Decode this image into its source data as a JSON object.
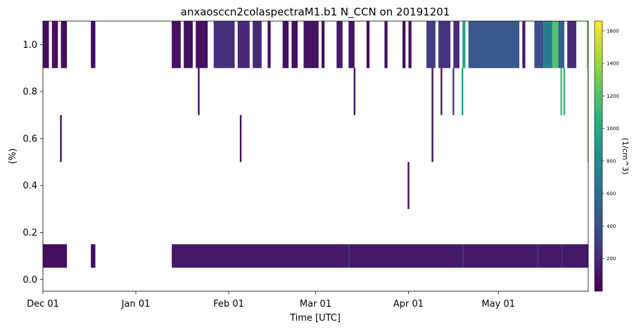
{
  "chart_data": {
    "type": "heatmap",
    "title": "anxaosccn2colaspectraM1.b1 N_CCN on 20191201",
    "xlabel": "Time [UTC]",
    "ylabel": "(%)",
    "colorbar_label": "(1/cm^3)",
    "colormap": "viridis",
    "x_range": [
      "2019-12-01",
      "2020-05-31"
    ],
    "ylim": [
      -0.05,
      1.1
    ],
    "clim": [
      0,
      1660
    ],
    "x_ticks": [
      {
        "date": "2019-12-01",
        "label": "Dec 01"
      },
      {
        "date": "2020-01-01",
        "label": "Jan 01"
      },
      {
        "date": "2020-02-01",
        "label": "Feb 01"
      },
      {
        "date": "2020-03-01",
        "label": "Mar 01"
      },
      {
        "date": "2020-04-01",
        "label": "Apr 01"
      },
      {
        "date": "2020-05-01",
        "label": "May 01"
      }
    ],
    "y_ticks": [
      {
        "value": 0.0,
        "label": "0.0"
      },
      {
        "value": 0.2,
        "label": "0.2"
      },
      {
        "value": 0.4,
        "label": "0.4"
      },
      {
        "value": 0.6,
        "label": "0.6"
      },
      {
        "value": 0.8,
        "label": "0.8"
      },
      {
        "value": 1.0,
        "label": "1.0"
      }
    ],
    "colorbar_ticks": [
      {
        "value": 200,
        "label": "200"
      },
      {
        "value": 400,
        "label": "400"
      },
      {
        "value": 600,
        "label": "600"
      },
      {
        "value": 800,
        "label": "800"
      },
      {
        "value": 1000,
        "label": "1000"
      },
      {
        "value": 1200,
        "label": "1200"
      },
      {
        "value": 1400,
        "label": "1400"
      },
      {
        "value": 1600,
        "label": "1600"
      }
    ],
    "low_band": {
      "y": [
        0.05,
        0.15
      ],
      "segments": [
        {
          "start": "2019-12-01",
          "end": "2019-12-09",
          "value": 60
        },
        {
          "start": "2019-12-17",
          "end": "2019-12-18.5",
          "value": 60
        },
        {
          "start": "2020-01-13",
          "end": "2020-05-31",
          "value": 110
        }
      ],
      "highlights": [
        {
          "date": "2020-03-12",
          "value": 300
        },
        {
          "date": "2020-04-19",
          "value": 350
        },
        {
          "date": "2020-05-14",
          "value": 300
        },
        {
          "date": "2020-05-22",
          "value": 280
        }
      ]
    },
    "high_band": {
      "y": [
        0.9,
        1.1
      ],
      "segments": [
        {
          "start": "2019-12-01",
          "end": "2019-12-03",
          "value": 60
        },
        {
          "start": "2019-12-04",
          "end": "2019-12-06",
          "value": 60
        },
        {
          "start": "2019-12-07",
          "end": "2019-12-09",
          "value": 60
        },
        {
          "start": "2019-12-17",
          "end": "2019-12-18.5",
          "value": 60
        },
        {
          "start": "2020-01-13",
          "end": "2020-01-16",
          "value": 80
        },
        {
          "start": "2020-01-17",
          "end": "2020-01-20",
          "value": 80
        },
        {
          "start": "2020-01-21",
          "end": "2020-01-25",
          "value": 70
        },
        {
          "start": "2020-01-27",
          "end": "2020-02-03",
          "value": 220
        },
        {
          "start": "2020-02-04",
          "end": "2020-02-08",
          "value": 180
        },
        {
          "start": "2020-02-09",
          "end": "2020-02-12",
          "value": 200
        },
        {
          "start": "2020-02-14",
          "end": "2020-02-15",
          "value": 80
        },
        {
          "start": "2020-02-19",
          "end": "2020-02-21",
          "value": 70
        },
        {
          "start": "2020-02-22",
          "end": "2020-02-24",
          "value": 60
        },
        {
          "start": "2020-02-26",
          "end": "2020-03-02",
          "value": 90
        },
        {
          "start": "2020-03-03",
          "end": "2020-03-04",
          "value": 70
        },
        {
          "start": "2020-03-08",
          "end": "2020-03-10",
          "value": 120
        },
        {
          "start": "2020-03-12",
          "end": "2020-03-14",
          "value": 90
        },
        {
          "start": "2020-03-18",
          "end": "2020-03-19",
          "value": 60
        },
        {
          "start": "2020-03-24",
          "end": "2020-03-25",
          "value": 60
        },
        {
          "start": "2020-03-30",
          "end": "2020-03-31",
          "value": 60
        },
        {
          "start": "2020-04-01",
          "end": "2020-04-02",
          "value": 60
        },
        {
          "start": "2020-04-07",
          "end": "2020-04-10",
          "value": 300
        },
        {
          "start": "2020-04-11",
          "end": "2020-04-15",
          "value": 250
        },
        {
          "start": "2020-04-16",
          "end": "2020-04-18",
          "value": 200
        },
        {
          "start": "2020-04-19",
          "end": "2020-04-20",
          "value": 1000
        },
        {
          "start": "2020-04-21",
          "end": "2020-05-08",
          "value": 450
        },
        {
          "start": "2020-05-09",
          "end": "2020-05-10",
          "value": 120
        },
        {
          "start": "2020-05-13",
          "end": "2020-05-16",
          "value": 400
        },
        {
          "start": "2020-05-16",
          "end": "2020-05-19",
          "value": 700
        },
        {
          "start": "2020-05-19",
          "end": "2020-05-21",
          "value": 1200
        },
        {
          "start": "2020-05-21",
          "end": "2020-05-23",
          "value": 500
        },
        {
          "start": "2020-05-24",
          "end": "2020-05-27",
          "value": 200
        },
        {
          "start": "2020-05-30.5",
          "end": "2020-05-31",
          "value": 1300
        }
      ]
    },
    "streaks": [
      {
        "date": "2019-12-07",
        "y": [
          0.5,
          0.7
        ],
        "value": 60
      },
      {
        "date": "2020-01-22",
        "y": [
          0.7,
          0.9
        ],
        "value": 60
      },
      {
        "date": "2020-02-05",
        "y": [
          0.5,
          0.7
        ],
        "value": 60
      },
      {
        "date": "2020-03-14",
        "y": [
          0.7,
          0.9
        ],
        "value": 60
      },
      {
        "date": "2020-04-01",
        "y": [
          0.3,
          0.5
        ],
        "value": 60
      },
      {
        "date": "2020-04-09",
        "y": [
          0.5,
          0.9
        ],
        "value": 60
      },
      {
        "date": "2020-04-12",
        "y": [
          0.7,
          0.9
        ],
        "value": 120
      },
      {
        "date": "2020-04-16",
        "y": [
          0.7,
          0.9
        ],
        "value": 300
      },
      {
        "date": "2020-04-19",
        "y": [
          0.7,
          0.9
        ],
        "value": 950
      },
      {
        "date": "2020-05-22",
        "y": [
          0.7,
          0.9
        ],
        "value": 1150
      },
      {
        "date": "2020-05-23",
        "y": [
          0.7,
          0.9
        ],
        "value": 1050
      },
      {
        "date": "2020-05-31",
        "y": [
          0.5,
          0.9
        ],
        "value": 1400
      }
    ]
  }
}
